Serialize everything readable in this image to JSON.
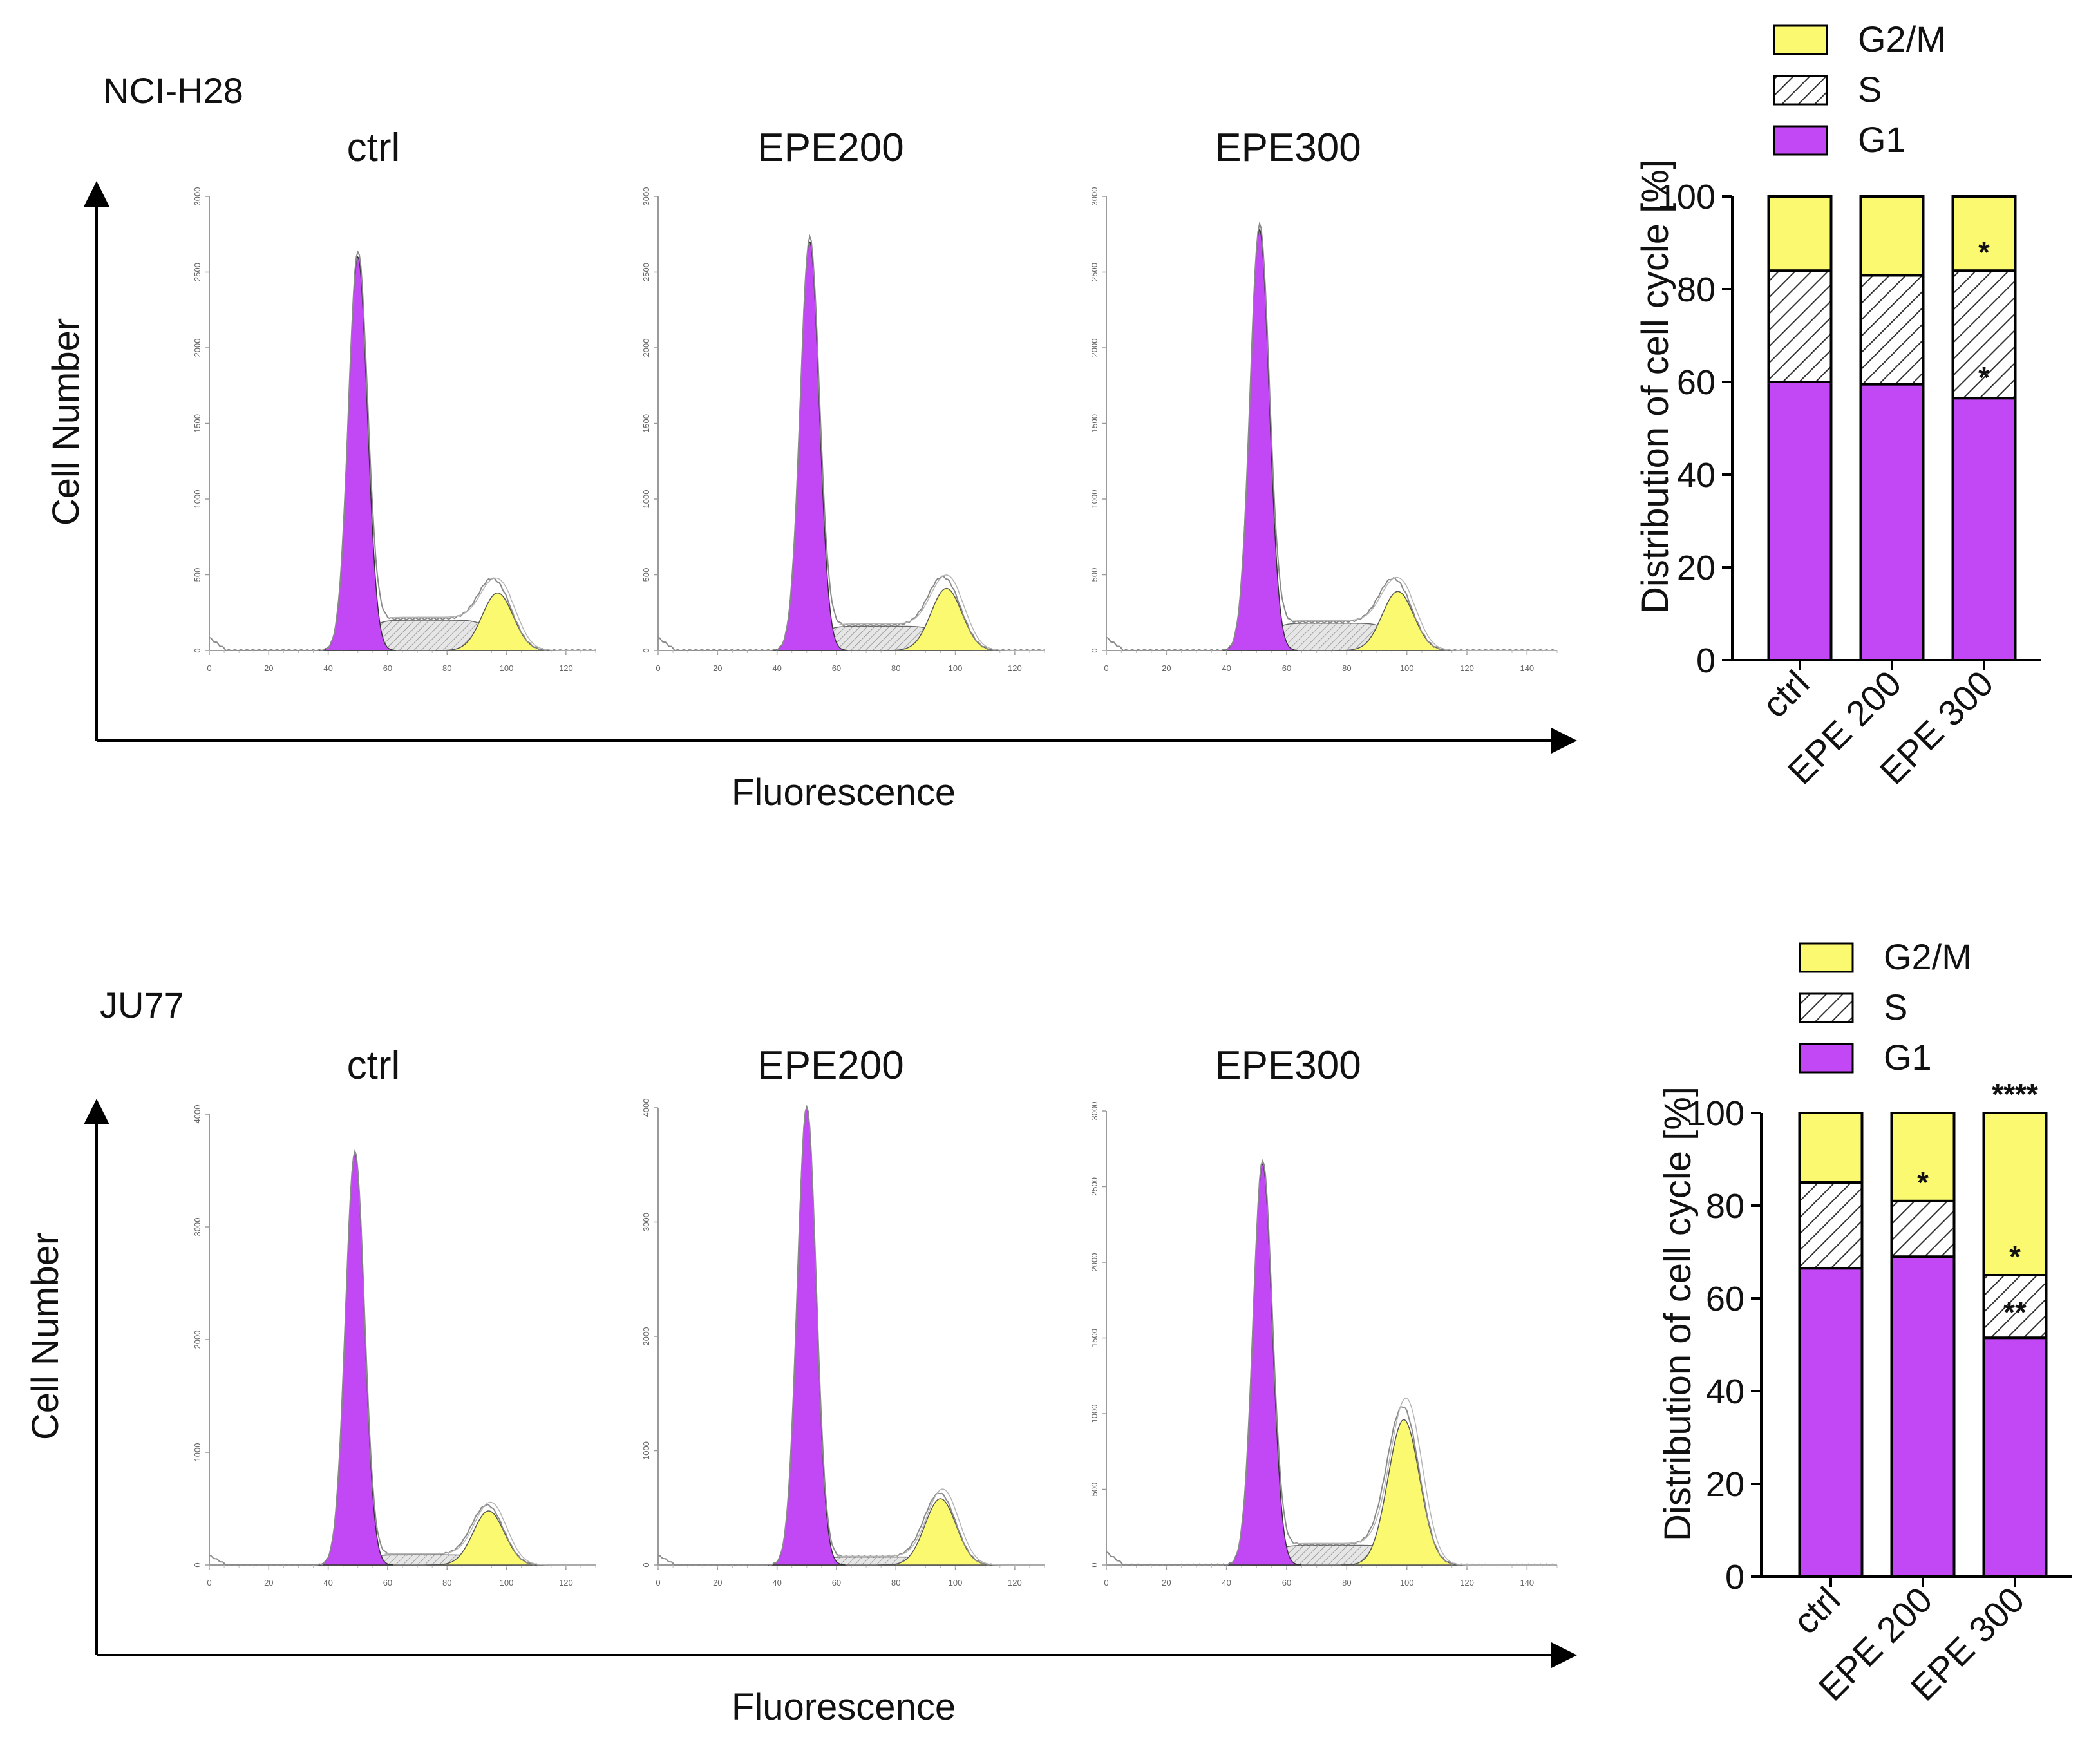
{
  "colors": {
    "g1": "#c247f5",
    "s_fill": "#dcdcdc",
    "g2m": "#fbf970",
    "axis": "#000000"
  },
  "panels": [
    {
      "cell_line": "NCI-H28",
      "axis_label_y": "Cell Number",
      "axis_label_x": "Fluorescence",
      "histograms": [
        {
          "condition": "ctrl",
          "y_max": 3000,
          "y_ticks": [
            "0",
            "500",
            "1000",
            "1500",
            "2000",
            "2500",
            "3000"
          ],
          "x_max": 130,
          "x_ticks": [
            "0",
            "20",
            "40",
            "60",
            "80",
            "100",
            "120"
          ],
          "g1_peak_x": 50,
          "g1_height": 2600,
          "s_level": 200,
          "g2_peak_x": 97,
          "g2_height": 380
        },
        {
          "condition": "EPE200",
          "y_max": 3000,
          "y_ticks": [
            "0",
            "500",
            "1000",
            "1500",
            "2000",
            "2500",
            "3000"
          ],
          "x_max": 130,
          "x_ticks": [
            "0",
            "20",
            "40",
            "60",
            "80",
            "100",
            "120"
          ],
          "g1_peak_x": 51,
          "g1_height": 2700,
          "s_level": 160,
          "g2_peak_x": 97,
          "g2_height": 410
        },
        {
          "condition": "EPE300",
          "y_max": 3000,
          "y_ticks": [
            "0",
            "500",
            "1000",
            "1500",
            "2000",
            "2500",
            "3000"
          ],
          "x_max": 150,
          "x_ticks": [
            "0",
            "20",
            "40",
            "60",
            "80",
            "100",
            "120",
            "140"
          ],
          "g1_peak_x": 51,
          "g1_height": 2780,
          "s_level": 180,
          "g2_peak_x": 97,
          "g2_height": 390
        }
      ],
      "bar_chart": {
        "type": "bar",
        "stacked": true,
        "ylabel": "Distribution of cell cycle [%]",
        "ylim": [
          0,
          100
        ],
        "yticks": [
          "0",
          "20",
          "40",
          "60",
          "80",
          "100"
        ],
        "categories": [
          "ctrl",
          "EPE 200",
          "EPE 300"
        ],
        "legend": [
          "G2/M",
          "S",
          "G1"
        ],
        "series": [
          {
            "name": "G1",
            "values": [
              60,
              59.5,
              56.5
            ]
          },
          {
            "name": "S",
            "values": [
              24,
              23.5,
              27.5
            ]
          },
          {
            "name": "G2/M",
            "values": [
              16,
              17,
              16
            ]
          }
        ],
        "annotations": [
          {
            "category": "EPE 300",
            "y": 88,
            "label": "*"
          },
          {
            "category": "EPE 300",
            "y": 61,
            "label": "*"
          }
        ]
      }
    },
    {
      "cell_line": "JU77",
      "axis_label_y": "Cell Number",
      "axis_label_x": "Fluorescence",
      "histograms": [
        {
          "condition": "ctrl",
          "y_max": 4000,
          "y_ticks": [
            "0",
            "1000",
            "2000",
            "3000",
            "4000"
          ],
          "x_max": 130,
          "x_ticks": [
            "0",
            "20",
            "40",
            "60",
            "80",
            "100",
            "120"
          ],
          "g1_peak_x": 49,
          "g1_height": 3650,
          "s_level": 90,
          "g2_peak_x": 94,
          "g2_height": 480
        },
        {
          "condition": "EPE200",
          "y_max": 4000,
          "y_ticks": [
            "0",
            "1000",
            "2000",
            "3000",
            "4000"
          ],
          "x_max": 130,
          "x_ticks": [
            "0",
            "20",
            "40",
            "60",
            "80",
            "100",
            "120"
          ],
          "g1_peak_x": 50,
          "g1_height": 4000,
          "s_level": 70,
          "g2_peak_x": 95,
          "g2_height": 580
        },
        {
          "condition": "EPE300",
          "y_max": 3000,
          "y_ticks": [
            "0",
            "500",
            "1000",
            "1500",
            "2000",
            "2500",
            "3000"
          ],
          "x_max": 150,
          "x_ticks": [
            "0",
            "20",
            "40",
            "60",
            "80",
            "100",
            "120",
            "140"
          ],
          "g1_peak_x": 52,
          "g1_height": 2650,
          "s_level": 130,
          "g2_peak_x": 99,
          "g2_height": 960
        }
      ],
      "bar_chart": {
        "type": "bar",
        "stacked": true,
        "ylabel": "Distribution of cell cycle [%]",
        "ylim": [
          0,
          100
        ],
        "yticks": [
          "0",
          "20",
          "40",
          "60",
          "80",
          "100"
        ],
        "categories": [
          "ctrl",
          "EPE 200",
          "EPE 300"
        ],
        "legend": [
          "G2/M",
          "S",
          "G1"
        ],
        "series": [
          {
            "name": "G1",
            "values": [
              66.5,
              69,
              51.5
            ]
          },
          {
            "name": "S",
            "values": [
              18.5,
              12,
              13.5
            ]
          },
          {
            "name": "G2/M",
            "values": [
              15,
              19,
              35
            ]
          }
        ],
        "annotations": [
          {
            "category": "EPE 200",
            "y": 85,
            "label": "*"
          },
          {
            "category": "EPE 300",
            "y": 104,
            "label": "****"
          },
          {
            "category": "EPE 300",
            "y": 69,
            "label": "*"
          },
          {
            "category": "EPE 300",
            "y": 57,
            "label": "**"
          }
        ]
      }
    }
  ]
}
